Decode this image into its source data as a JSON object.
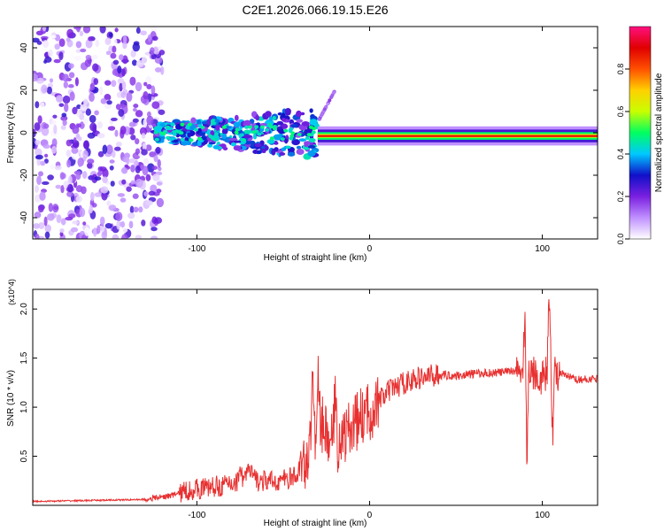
{
  "title": "C2E1.2026.066.19.15.E26",
  "colors": {
    "snr_line": "#e83030",
    "axis": "#000000"
  },
  "chart_data": [
    {
      "type": "heatmap",
      "title": "C2E1.2026.066.19.15.E26",
      "xlabel": "Height of straight line (km)",
      "ylabel": "Frequency (Hz)",
      "xlim": [
        -195,
        132
      ],
      "ylim": [
        -50,
        50
      ],
      "xticks": [
        -100,
        0,
        100
      ],
      "xtick_labels": [
        "-100",
        "0",
        "100"
      ],
      "yticks": [
        -40,
        -20,
        0,
        20,
        40
      ],
      "ytick_labels": [
        "-40",
        "-20",
        "0",
        "20",
        "40"
      ],
      "colorbar": {
        "label": "Normalized spectral amplitude",
        "range": [
          0,
          1
        ],
        "ticks": [
          0.0,
          0.2,
          0.4,
          0.6,
          0.8
        ],
        "tick_labels": [
          "0.0",
          "0.2",
          "0.4",
          "0.6",
          "0.8"
        ],
        "colormap": [
          "#ffffff",
          "#c090ff",
          "#7a20e0",
          "#1010c8",
          "#00c8ff",
          "#00ff60",
          "#c8ff00",
          "#ffd000",
          "#ff5000",
          "#e00000",
          "#ff1080"
        ]
      },
      "regions": [
        {
          "name": "noise",
          "x_range": [
            -195,
            -120
          ],
          "freq_range": [
            -50,
            50
          ],
          "amplitude": 0.15
        },
        {
          "name": "scattered-signal",
          "x_range": [
            -125,
            -30
          ],
          "freq_center": 0,
          "freq_spread": 8,
          "amplitude": 0.35
        },
        {
          "name": "rising-branch",
          "x_range": [
            -30,
            -20
          ],
          "freq_range": [
            5,
            20
          ],
          "amplitude": 0.2
        },
        {
          "name": "stable-carrier",
          "x_range": [
            -30,
            132
          ],
          "freq_center": -1.5,
          "freq_spread": 2,
          "amplitude": 0.9
        }
      ]
    },
    {
      "type": "line",
      "xlabel": "Height of straight line (km)",
      "ylabel": "SNR (10 * v/v)",
      "y_multiplier": "(x10^4)",
      "xlim": [
        -195,
        132
      ],
      "ylim": [
        0,
        22000
      ],
      "xticks": [
        -100,
        0,
        100
      ],
      "xtick_labels": [
        "-100",
        "0",
        "100"
      ],
      "yticks": [
        5000,
        10000,
        15000,
        20000
      ],
      "ytick_labels": [
        "0.5",
        "1.0",
        "1.5",
        "2.0"
      ],
      "series": [
        {
          "name": "SNR",
          "x": [
            -195,
            -160,
            -130,
            -115,
            -105,
            -95,
            -85,
            -75,
            -70,
            -65,
            -55,
            -45,
            -40,
            -35,
            -32,
            -30,
            -28,
            -25,
            -22,
            -20,
            -15,
            -10,
            -5,
            0,
            5,
            10,
            15,
            20,
            30,
            40,
            50,
            60,
            70,
            80,
            85,
            88,
            90,
            92,
            95,
            100,
            105,
            108,
            112,
            120,
            132
          ],
          "values": [
            400,
            500,
            600,
            1000,
            1500,
            1800,
            2000,
            2500,
            3500,
            2500,
            2400,
            2800,
            3200,
            5500,
            6500,
            9000,
            8500,
            7000,
            6500,
            6000,
            7000,
            8000,
            9000,
            9500,
            10500,
            11500,
            12000,
            12500,
            13000,
            13300,
            13200,
            13400,
            13500,
            13600,
            13800,
            14000,
            12000,
            14000,
            13500,
            13000,
            14000,
            13500,
            13300,
            12800,
            12900
          ],
          "spikes": [
            {
              "x": -75,
              "amp": 2000
            },
            {
              "x": -40,
              "amp": 1500
            },
            {
              "x": -33,
              "amp": 10000
            },
            {
              "x": -30,
              "amp": 5000
            },
            {
              "x": -20,
              "amp": 6000
            },
            {
              "x": 90,
              "amp": 9000
            },
            {
              "x": 91,
              "amp": -9500
            },
            {
              "x": 104,
              "amp": 8000
            },
            {
              "x": 106,
              "amp": -6500
            }
          ]
        }
      ]
    }
  ]
}
